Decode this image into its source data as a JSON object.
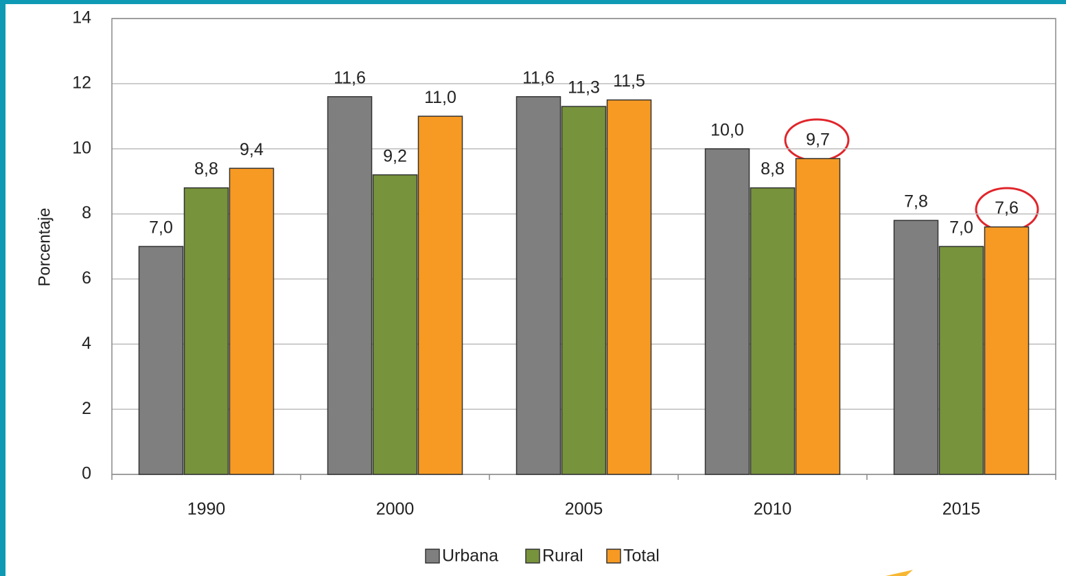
{
  "chart_data": {
    "type": "bar",
    "y_label": "Porcentaje",
    "categories": [
      "1990",
      "2000",
      "2005",
      "2010",
      "2015"
    ],
    "series": [
      {
        "name": "Urbana",
        "color": "#7f7f7f",
        "values": [
          7,
          11.6,
          11.6,
          10,
          7.8
        ],
        "value_labels": [
          "7,0",
          "11,6",
          "11,6",
          "10,0",
          "7,8"
        ]
      },
      {
        "name": "Rural",
        "color": "#77933c",
        "values": [
          8.8,
          9.2,
          11.3,
          8.8,
          7
        ],
        "value_labels": [
          "8,8",
          "9,2",
          "11,3",
          "8,8",
          "7,0"
        ]
      },
      {
        "name": "Total",
        "color": "#f79a23",
        "values": [
          9.4,
          11,
          11.5,
          9.7,
          7.6
        ],
        "value_labels": [
          "9,4",
          "11,0",
          "11,5",
          "9,7",
          "7,6"
        ]
      }
    ],
    "ylim": [
      0,
      14
    ],
    "yticks": [
      0,
      2,
      4,
      6,
      8,
      10,
      12,
      14
    ],
    "grid": true,
    "legend": "bottom"
  }
}
